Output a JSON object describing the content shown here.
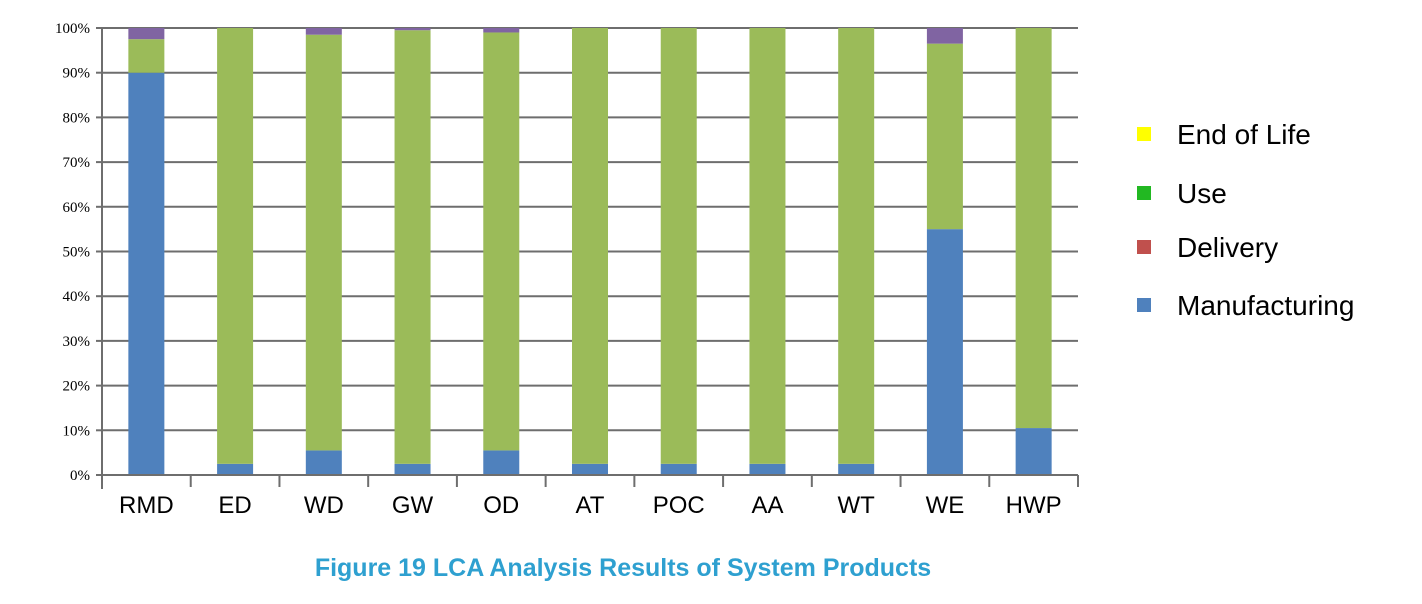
{
  "chart_data": {
    "type": "bar",
    "stacked": true,
    "percent": true,
    "title": "",
    "caption": "Figure 19  LCA  Analysis Results of System Products",
    "xlabel": "",
    "ylabel": "",
    "ylim": [
      0,
      100
    ],
    "yticks": [
      "0%",
      "10%",
      "20%",
      "30%",
      "40%",
      "50%",
      "60%",
      "70%",
      "80%",
      "90%",
      "100%"
    ],
    "grid": true,
    "legend_position": "right",
    "categories": [
      "RMD",
      "ED",
      "WD",
      "GW",
      "OD",
      "AT",
      "POC",
      "AA",
      "WT",
      "WE",
      "HWP"
    ],
    "legend": [
      {
        "name": "End of Life",
        "color": "#ffff00"
      },
      {
        "name": "Use",
        "color": "#22b822"
      },
      {
        "name": "Delivery",
        "color": "#c0504d"
      },
      {
        "name": "Manufacturing",
        "color": "#4f81bd"
      }
    ],
    "series": [
      {
        "key": "manufacturing",
        "color": "#4f81bd",
        "values": [
          90,
          2.5,
          5.5,
          2.5,
          5.5,
          2.5,
          2.5,
          2.5,
          2.5,
          55,
          10.5
        ]
      },
      {
        "key": "use",
        "color": "#9bbb59",
        "values": [
          7.5,
          97.5,
          93,
          97,
          93.5,
          97.5,
          97.5,
          97.5,
          97.5,
          41.5,
          89.5
        ]
      },
      {
        "key": "end_of_life",
        "color": "#8064a2",
        "values": [
          2.5,
          0,
          1.5,
          0.5,
          1,
          0,
          0,
          0,
          0,
          3.5,
          0
        ]
      }
    ]
  }
}
